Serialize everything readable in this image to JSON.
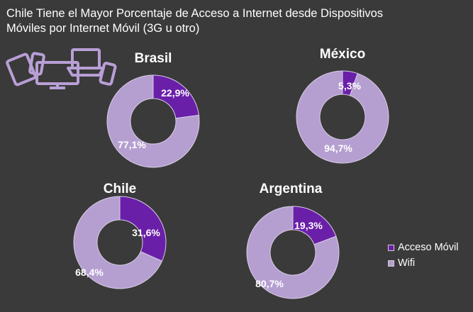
{
  "title": {
    "line1": "Chile Tiene el Mayor Porcentaje de Acceso a Internet desde Dispositivos",
    "line2": "Móviles por Internet Móvil (3G u otro)"
  },
  "colors": {
    "background": "#3a3a3a",
    "acceso_movil": "#6a1fa8",
    "wifi": "#b59fd0",
    "icon_stroke": "#b89fd6"
  },
  "devices_icon": "devices-icon",
  "chart_data": [
    {
      "type": "pie",
      "title": "Brasil",
      "categories": [
        "Acceso Móvil",
        "Wifi"
      ],
      "values": [
        22.9,
        77.1
      ],
      "labels": [
        "22,9%",
        "77,1%"
      ]
    },
    {
      "type": "pie",
      "title": "México",
      "categories": [
        "Acceso Móvil",
        "Wifi"
      ],
      "values": [
        5.3,
        94.7
      ],
      "labels": [
        "5,3%",
        "94,7%"
      ]
    },
    {
      "type": "pie",
      "title": "Chile",
      "categories": [
        "Acceso Móvil",
        "Wifi"
      ],
      "values": [
        31.6,
        68.4
      ],
      "labels": [
        "31,6%",
        "68,4%"
      ]
    },
    {
      "type": "pie",
      "title": "Argentina",
      "categories": [
        "Acceso Móvil",
        "Wifi"
      ],
      "values": [
        19.3,
        80.7
      ],
      "labels": [
        "19,3%",
        "80,7%"
      ]
    }
  ],
  "legend": {
    "placement": "right",
    "items": [
      "Acceso Móvil",
      "Wifi"
    ]
  }
}
